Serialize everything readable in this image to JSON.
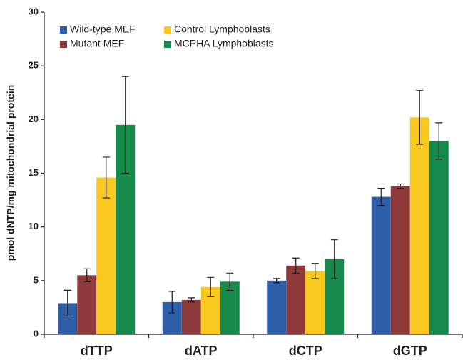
{
  "chart_data": {
    "type": "bar",
    "y_label": "pmol dNTP/mg mitochondrial protein",
    "categories": [
      "dTTP",
      "dATP",
      "dCTP",
      "dGTP"
    ],
    "series": [
      {
        "name": "Wild-type MEF",
        "color": "#2e5ea8",
        "values": [
          2.9,
          3.0,
          5.0,
          12.8
        ],
        "errors": [
          1.2,
          1.0,
          0.2,
          0.8
        ]
      },
      {
        "name": "Mutant MEF",
        "color": "#8e3a3a",
        "values": [
          5.5,
          3.2,
          6.4,
          13.8
        ],
        "errors": [
          0.6,
          0.2,
          0.7,
          0.2
        ]
      },
      {
        "name": "Control Lymphoblasts",
        "color": "#f8c81e",
        "values": [
          14.6,
          4.4,
          5.9,
          20.2
        ],
        "errors": [
          1.9,
          0.9,
          0.7,
          2.5
        ]
      },
      {
        "name": "MCPHA Lymphoblasts",
        "color": "#168a4a",
        "values": [
          19.5,
          4.9,
          7.0,
          18.0
        ],
        "errors": [
          4.5,
          0.8,
          1.8,
          1.7
        ]
      }
    ],
    "ylim": [
      0,
      30
    ],
    "yticks": [
      0,
      5,
      10,
      15,
      20,
      25,
      30
    ],
    "grid": false
  }
}
